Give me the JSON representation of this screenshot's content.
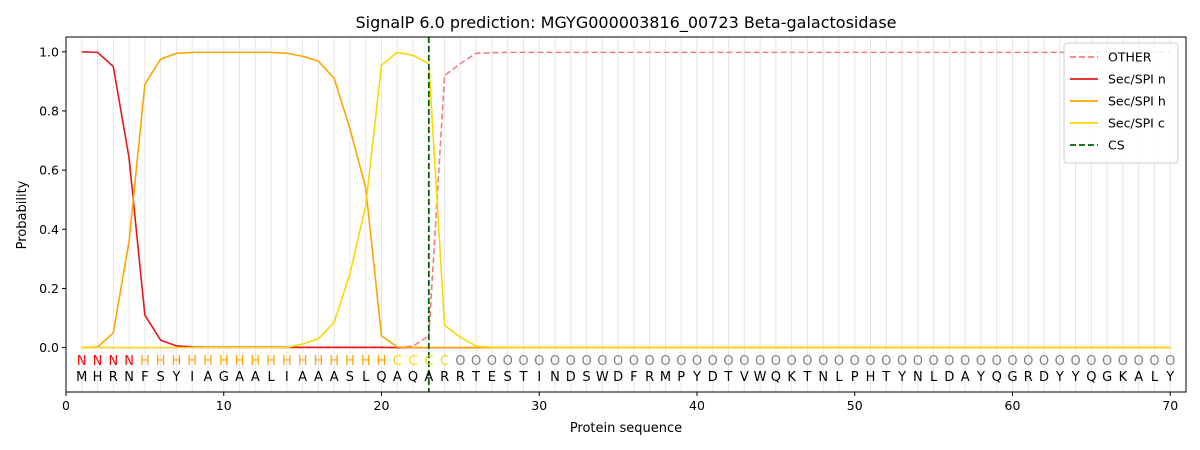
{
  "chart_data": {
    "type": "line",
    "title": "SignalP 6.0 prediction: MGYG000003816_00723 Beta-galactosidase",
    "xlabel": "Protein sequence",
    "ylabel": "Probability",
    "xlim": [
      0,
      71
    ],
    "ylim": [
      -0.15,
      1.05
    ],
    "x_ticks": [
      0,
      10,
      20,
      30,
      40,
      50,
      60,
      70
    ],
    "y_ticks": [
      0.0,
      0.2,
      0.4,
      0.6,
      0.8,
      1.0
    ],
    "sequence": "MHRNFSYIAGAALIAAASLQAQARRTESTINDSWDFRMPYDTVWQKTNLPHTYNLDAYQGRDYYQGKALY",
    "labels": "NNNNHHHHHHHHHHHHHHHHCCCCOOOOOOOOOOOOOOOOOOOOOOOOOOOOOOOOOOOOOOOOOOOOOOO",
    "label_colors": {
      "N": "#ff0000",
      "H": "#ffa500",
      "C": "#ffd700",
      "O": "#808080"
    },
    "legend": {
      "position": "top-right"
    },
    "series": [
      {
        "name": "OTHER",
        "color": "#f08080",
        "dash": true,
        "values": [
          0,
          0,
          0,
          0,
          0,
          0,
          0,
          0,
          0,
          0,
          0,
          0,
          0,
          0,
          0,
          0,
          0,
          0,
          0,
          0,
          0,
          0.005,
          0.04,
          0.92,
          0.96,
          0.995,
          0.997,
          0.998,
          0.998,
          0.998,
          0.998,
          0.998,
          0.998,
          0.998,
          0.998,
          0.998,
          0.998,
          0.998,
          0.998,
          0.998,
          0.998,
          0.998,
          0.998,
          0.998,
          0.998,
          0.998,
          0.998,
          0.998,
          0.998,
          0.998,
          0.998,
          0.998,
          0.998,
          0.998,
          0.998,
          0.998,
          0.998,
          0.998,
          0.998,
          0.998,
          0.998,
          0.998,
          0.998,
          0.998,
          0.998,
          0.998,
          0.998,
          0.998,
          0.998,
          0.998
        ]
      },
      {
        "name": "Sec/SPI n",
        "color": "#e31a1c",
        "dash": false,
        "values": [
          1.0,
          0.998,
          0.95,
          0.64,
          0.11,
          0.025,
          0.006,
          0.002,
          0.001,
          0.001,
          0.001,
          0.001,
          0.001,
          0.001,
          0.001,
          0.001,
          0.001,
          0.001,
          0.001,
          0.001,
          0,
          0,
          0,
          0,
          0,
          0,
          0,
          0,
          0,
          0,
          0,
          0,
          0,
          0,
          0,
          0,
          0,
          0,
          0,
          0,
          0,
          0,
          0,
          0,
          0,
          0,
          0,
          0,
          0,
          0,
          0,
          0,
          0,
          0,
          0,
          0,
          0,
          0,
          0,
          0,
          0,
          0,
          0,
          0,
          0,
          0,
          0,
          0,
          0,
          0
        ]
      },
      {
        "name": "Sec/SPI h",
        "color": "#ffa500",
        "dash": false,
        "values": [
          0,
          0.002,
          0.05,
          0.36,
          0.89,
          0.975,
          0.995,
          0.998,
          0.998,
          0.998,
          0.998,
          0.998,
          0.998,
          0.995,
          0.985,
          0.968,
          0.91,
          0.74,
          0.54,
          0.04,
          0.002,
          0,
          0,
          0,
          0,
          0,
          0,
          0,
          0,
          0,
          0,
          0,
          0,
          0,
          0,
          0,
          0,
          0,
          0,
          0,
          0,
          0,
          0,
          0,
          0,
          0,
          0,
          0,
          0,
          0,
          0,
          0,
          0,
          0,
          0,
          0,
          0,
          0,
          0,
          0,
          0,
          0,
          0,
          0,
          0,
          0,
          0,
          0,
          0,
          0
        ]
      },
      {
        "name": "Sec/SPI c",
        "color": "#ffd700",
        "dash": false,
        "values": [
          0,
          0,
          0,
          0,
          0,
          0,
          0,
          0,
          0,
          0,
          0,
          0,
          0,
          0,
          0.012,
          0.03,
          0.085,
          0.25,
          0.48,
          0.955,
          0.998,
          0.988,
          0.96,
          0.075,
          0.035,
          0.005,
          0.001,
          0,
          0,
          0,
          0,
          0,
          0,
          0,
          0,
          0,
          0,
          0,
          0,
          0,
          0,
          0,
          0,
          0,
          0,
          0,
          0,
          0,
          0,
          0,
          0,
          0,
          0,
          0,
          0,
          0,
          0,
          0,
          0,
          0,
          0,
          0,
          0,
          0,
          0,
          0,
          0,
          0,
          0,
          0
        ]
      }
    ],
    "cs": {
      "name": "CS",
      "x": 23,
      "color": "#006400"
    }
  }
}
